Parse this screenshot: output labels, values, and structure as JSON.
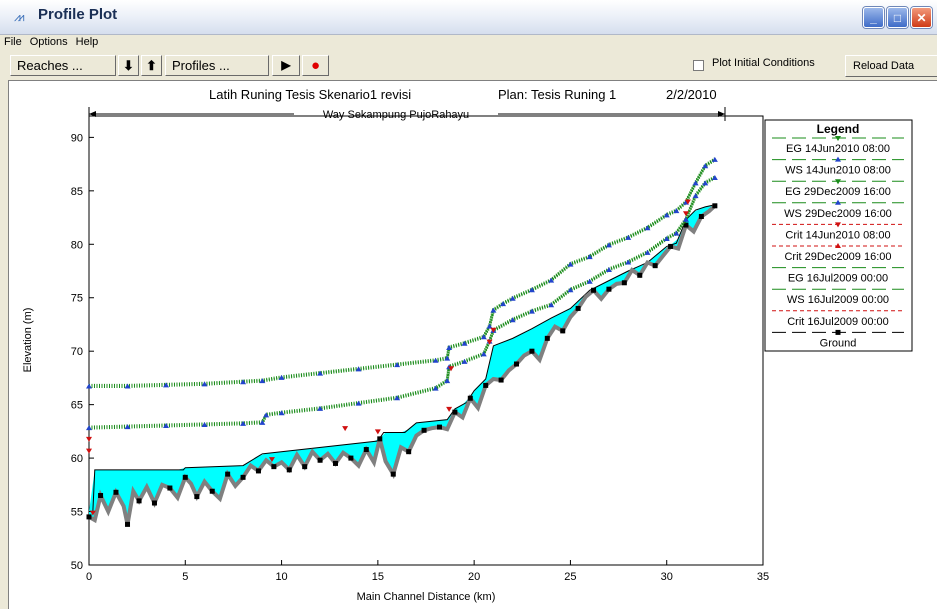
{
  "window": {
    "title": "Profile Plot",
    "controls": {
      "minimize": "_",
      "maximize": "□",
      "close": "✕"
    }
  },
  "menu": [
    "File",
    "Options",
    "Help"
  ],
  "toolbar": {
    "reaches_label": "Reaches ...",
    "down_arrow": "⬇",
    "up_arrow": "⬆",
    "profiles_label": "Profiles ...",
    "play_icon": "▶",
    "record_icon": "●",
    "plot_initial_conditions": "Plot Initial Conditions",
    "plot_initial_checked": false,
    "reload_label": "Reload Data"
  },
  "plot": {
    "title_left": "Latih Runing Tesis Skenario1 revisi",
    "title_plan": "Plan: Tesis Runing 1",
    "title_date": "2/2/2010",
    "reach_label": "Way Sekampung PujoRahayu"
  },
  "legend": {
    "title": "Legend",
    "entries": [
      {
        "label": "EG  14Jun2010 08:00",
        "color": "#1a8c1a",
        "style": "solid",
        "marker": "tri-down"
      },
      {
        "label": "WS  14Jun2010 08:00",
        "color": "#1a8c1a",
        "style": "solid",
        "marker": "tri-up-blue"
      },
      {
        "label": "EG  29Dec2009 16:00",
        "color": "#1a8c1a",
        "style": "solid",
        "marker": "tri-down"
      },
      {
        "label": "WS  29Dec2009 16:00",
        "color": "#1a8c1a",
        "style": "solid",
        "marker": "tri-up-blue"
      },
      {
        "label": "Crit  14Jun2010 08:00",
        "color": "#d01010",
        "style": "dashed",
        "marker": "tri-down-red"
      },
      {
        "label": "Crit  29Dec2009 16:00",
        "color": "#d01010",
        "style": "dashed",
        "marker": "tri-up-red"
      },
      {
        "label": "EG  16Jul2009 00:00",
        "color": "#1a8c1a",
        "style": "solid",
        "marker": "none"
      },
      {
        "label": "WS  16Jul2009 00:00",
        "color": "#1a8c1a",
        "style": "solid",
        "marker": "none"
      },
      {
        "label": "Crit  16Jul2009 00:00",
        "color": "#d01010",
        "style": "dashed",
        "marker": "none"
      },
      {
        "label": "Ground",
        "color": "#000000",
        "style": "solid",
        "marker": "square"
      }
    ]
  },
  "chart_data": {
    "type": "line",
    "xlabel": "Main Channel Distance (km)",
    "ylabel": "Elevation (m)",
    "xlim": [
      0,
      35
    ],
    "ylim": [
      50,
      92
    ],
    "xticks": [
      0,
      5,
      10,
      15,
      20,
      25,
      30,
      35
    ],
    "yticks": [
      50,
      55,
      60,
      65,
      70,
      75,
      80,
      85,
      90
    ],
    "colors": {
      "eg_ws": "#1a8c1a",
      "ws_marker": "#2244cc",
      "crit": "#d01010",
      "ground": "#808080",
      "ground_marker": "#000000",
      "water": "#00ffff"
    },
    "series": [
      {
        "name": "EG  14Jun2010 08:00",
        "x": [
          0,
          2,
          4,
          6,
          8,
          9,
          10,
          12,
          14,
          16,
          18,
          18.6,
          18.7,
          19.5,
          20.5,
          20.8,
          21,
          21.5,
          22,
          23,
          24,
          25,
          26,
          27,
          28,
          29,
          30,
          30.5,
          31,
          31.5,
          32,
          32.5
        ],
        "y": [
          66.8,
          66.8,
          66.9,
          67.0,
          67.2,
          67.3,
          67.6,
          68.0,
          68.4,
          68.8,
          69.2,
          69.4,
          70.4,
          70.8,
          71.4,
          72.4,
          73.9,
          74.5,
          75.0,
          75.8,
          76.7,
          78.2,
          78.9,
          80.0,
          80.7,
          81.6,
          82.8,
          83.2,
          84.0,
          85.8,
          87.4,
          88.0
        ]
      },
      {
        "name": "WS  14Jun2010 08:00",
        "x": [
          0,
          2,
          4,
          6,
          8,
          9,
          10,
          12,
          14,
          16,
          18,
          18.6,
          18.7,
          19.5,
          20.5,
          20.8,
          21,
          21.5,
          22,
          23,
          24,
          25,
          26,
          27,
          28,
          29,
          30,
          30.5,
          31,
          31.5,
          32,
          32.5
        ],
        "y": [
          66.7,
          66.7,
          66.8,
          66.9,
          67.1,
          67.2,
          67.5,
          67.9,
          68.3,
          68.7,
          69.1,
          69.3,
          70.3,
          70.7,
          71.3,
          72.3,
          73.8,
          74.4,
          74.9,
          75.7,
          76.6,
          78.1,
          78.8,
          79.9,
          80.6,
          81.5,
          82.7,
          83.1,
          83.9,
          85.7,
          87.3,
          87.9
        ]
      },
      {
        "name": "EG  29Dec2009 16:00",
        "x": [
          0,
          2,
          4,
          6,
          8,
          9,
          9.2,
          10,
          12,
          14,
          16,
          18,
          18.6,
          18.7,
          19.5,
          20.5,
          20.8,
          21,
          22,
          23,
          24,
          25,
          26,
          27,
          28,
          29,
          30,
          30.5,
          31,
          31.5,
          32,
          32.5
        ],
        "y": [
          62.9,
          63.0,
          63.1,
          63.2,
          63.3,
          63.4,
          64.1,
          64.3,
          64.7,
          65.2,
          65.7,
          66.6,
          67.3,
          68.6,
          69.1,
          69.8,
          71.0,
          72.0,
          73.0,
          73.8,
          74.4,
          75.8,
          76.6,
          77.7,
          78.4,
          79.3,
          80.6,
          81.1,
          82.4,
          84.6,
          85.8,
          86.3
        ]
      },
      {
        "name": "WS  29Dec2009 16:00",
        "x": [
          0,
          2,
          4,
          6,
          8,
          9,
          9.2,
          10,
          12,
          14,
          16,
          18,
          18.6,
          18.7,
          19.5,
          20.5,
          20.8,
          21,
          22,
          23,
          24,
          25,
          26,
          27,
          28,
          29,
          30,
          30.5,
          31,
          31.5,
          32,
          32.5
        ],
        "y": [
          62.8,
          62.9,
          63.0,
          63.1,
          63.2,
          63.3,
          64.0,
          64.2,
          64.6,
          65.1,
          65.6,
          66.5,
          67.2,
          68.5,
          69.0,
          69.7,
          70.9,
          71.9,
          72.9,
          73.7,
          74.3,
          75.7,
          76.5,
          77.6,
          78.3,
          79.2,
          80.5,
          81.0,
          82.3,
          84.5,
          85.7,
          86.2
        ]
      },
      {
        "name": "WS  16Jul2009 00:00",
        "x": [
          0,
          0.2,
          0.3,
          4.9,
          5.0,
          8.0,
          9.0,
          15.0,
          15.3,
          16.4,
          17.0,
          18.6,
          19.0,
          19.6,
          20.0,
          20.6,
          21.0,
          22.0,
          23.0,
          24.0,
          25.0,
          26.0,
          27.0,
          28.0,
          29.0,
          30.0,
          30.5,
          31.0,
          31.5,
          32.0,
          32.5
        ],
        "y": [
          55.0,
          55.0,
          58.9,
          58.9,
          59.1,
          59.3,
          60.4,
          61.6,
          62.4,
          62.4,
          63.3,
          63.6,
          64.6,
          65.2,
          66.3,
          67.4,
          70.5,
          71.2,
          72.1,
          73.1,
          74.0,
          75.7,
          76.6,
          77.5,
          78.3,
          79.8,
          80.1,
          82.3,
          83.2,
          83.5,
          83.7
        ]
      },
      {
        "name": "Ground",
        "x": [
          0,
          0.3,
          0.6,
          1.0,
          1.4,
          1.8,
          2.0,
          2.3,
          2.6,
          3.0,
          3.4,
          3.8,
          4.2,
          4.6,
          5.0,
          5.3,
          5.6,
          6.0,
          6.4,
          6.8,
          7.2,
          7.6,
          8.0,
          8.4,
          8.8,
          9.2,
          9.6,
          10.0,
          10.4,
          10.8,
          11.2,
          11.6,
          12.0,
          12.4,
          12.8,
          13.2,
          13.6,
          14.0,
          14.4,
          14.8,
          15.1,
          15.4,
          15.8,
          16.2,
          16.6,
          17.0,
          17.4,
          17.8,
          18.2,
          18.6,
          19.0,
          19.4,
          19.8,
          20.2,
          20.6,
          21.0,
          21.4,
          21.8,
          22.2,
          22.6,
          23.0,
          23.4,
          23.8,
          24.2,
          24.6,
          25.0,
          25.4,
          25.8,
          26.2,
          26.6,
          27.0,
          27.4,
          27.8,
          28.2,
          28.6,
          29.0,
          29.4,
          29.8,
          30.2,
          30.6,
          31.0,
          31.4,
          31.8,
          32.2,
          32.5
        ],
        "y": [
          54.5,
          54.2,
          56.5,
          55.0,
          56.8,
          55.5,
          53.8,
          56.9,
          56.0,
          57.3,
          55.8,
          57.5,
          57.2,
          56.3,
          58.2,
          57.6,
          56.4,
          57.8,
          56.9,
          56.2,
          58.5,
          57.4,
          58.2,
          59.3,
          58.8,
          59.8,
          59.2,
          59.6,
          58.9,
          60.3,
          59.2,
          60.6,
          59.8,
          60.4,
          59.5,
          60.5,
          60.0,
          59.3,
          60.8,
          59.6,
          61.8,
          59.7,
          58.5,
          61.0,
          60.6,
          62.1,
          62.6,
          62.8,
          62.9,
          62.7,
          64.3,
          63.8,
          65.6,
          64.7,
          66.8,
          67.4,
          67.3,
          68.2,
          68.8,
          69.6,
          70.0,
          69.2,
          71.2,
          72.3,
          71.9,
          73.2,
          74.0,
          75.1,
          75.7,
          74.9,
          75.8,
          76.3,
          76.4,
          77.6,
          77.1,
          78.3,
          78.0,
          78.9,
          79.8,
          79.6,
          81.8,
          81.2,
          82.6,
          83.1,
          83.6
        ]
      }
    ]
  }
}
